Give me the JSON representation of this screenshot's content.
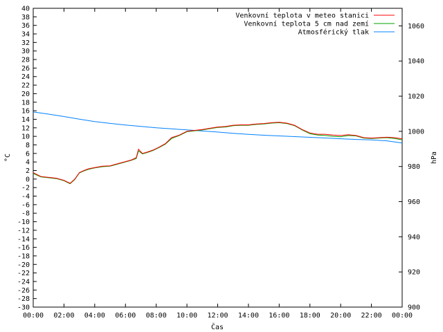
{
  "chart_data": {
    "type": "line",
    "xlabel": "Čas",
    "ylabel_left": "°C",
    "ylabel_right": "hPa",
    "x_ticks": [
      "00:00",
      "02:00",
      "04:00",
      "06:00",
      "08:00",
      "10:00",
      "12:00",
      "14:00",
      "16:00",
      "18:00",
      "20:00",
      "22:00",
      "00:00"
    ],
    "x_range_hours": [
      0,
      24
    ],
    "ylim_left": [
      -30,
      40
    ],
    "y_ticks_left": [
      40,
      38,
      36,
      34,
      32,
      30,
      28,
      26,
      24,
      22,
      20,
      18,
      16,
      14,
      12,
      10,
      8,
      6,
      4,
      2,
      0,
      -2,
      -4,
      -6,
      -8,
      -10,
      -12,
      -14,
      -16,
      -18,
      -20,
      -22,
      -24,
      -26,
      -28,
      -30
    ],
    "ylim_right": [
      900,
      1070
    ],
    "y_ticks_right": [
      1060,
      1040,
      1020,
      1000,
      980,
      960,
      940,
      920,
      900
    ],
    "grid": false,
    "legend_position": "top-right",
    "series": [
      {
        "name": "Venkovní teplota v meteo stanici",
        "color": "#ff0000",
        "axis": "left",
        "x": [
          0,
          0.5,
          1,
          1.5,
          2,
          2.4,
          2.7,
          3,
          3.3,
          3.6,
          4,
          4.5,
          5,
          5.5,
          6,
          6.4,
          6.7,
          6.85,
          7.1,
          7.4,
          7.8,
          8.2,
          8.6,
          9,
          9.5,
          10,
          10.5,
          11,
          11.5,
          12,
          12.5,
          13,
          13.5,
          14,
          14.5,
          15,
          15.5,
          16,
          16.5,
          17,
          17.5,
          18,
          18.5,
          19,
          19.5,
          20,
          20.5,
          21,
          21.5,
          22,
          22.5,
          23,
          23.5,
          24
        ],
        "values": [
          1.5,
          0.6,
          0.4,
          0.2,
          -0.3,
          -1,
          0,
          1.5,
          2,
          2.4,
          2.7,
          3,
          3.1,
          3.6,
          4.1,
          4.5,
          5,
          7,
          6,
          6.3,
          6.8,
          7.5,
          8.3,
          9.7,
          10.3,
          11.2,
          11.4,
          11.6,
          11.9,
          12.2,
          12.3,
          12.6,
          12.7,
          12.7,
          12.9,
          13,
          13.2,
          13.3,
          13.1,
          12.6,
          11.6,
          10.8,
          10.5,
          10.5,
          10.3,
          10.2,
          10.4,
          10.2,
          9.7,
          9.6,
          9.7,
          9.8,
          9.7,
          9.4
        ]
      },
      {
        "name": "Venkovní teplota 5 cm nad zemí",
        "color": "#00a000",
        "axis": "left",
        "x": [
          0,
          0.5,
          1,
          1.5,
          2,
          2.4,
          2.7,
          3,
          3.3,
          3.6,
          4,
          4.5,
          5,
          5.5,
          6,
          6.4,
          6.7,
          6.85,
          7.1,
          7.4,
          7.8,
          8.2,
          8.6,
          9,
          9.5,
          10,
          10.5,
          11,
          11.5,
          12,
          12.5,
          13,
          13.5,
          14,
          14.5,
          15,
          15.5,
          16,
          16.5,
          17,
          17.5,
          18,
          18.5,
          19,
          19.5,
          20,
          20.5,
          21,
          21.5,
          22,
          22.5,
          23,
          23.5,
          24
        ],
        "values": [
          1.3,
          0.5,
          0.3,
          0.1,
          -0.4,
          -1.1,
          -0.1,
          1.4,
          1.9,
          2.3,
          2.6,
          2.9,
          3,
          3.5,
          4,
          4.4,
          4.8,
          6.6,
          5.9,
          6.2,
          6.7,
          7.4,
          8.2,
          9.5,
          10.2,
          11.1,
          11.3,
          11.5,
          11.8,
          12.1,
          12.2,
          12.5,
          12.6,
          12.6,
          12.8,
          12.9,
          13.1,
          13.2,
          13,
          12.5,
          11.5,
          10.6,
          10.3,
          10.2,
          10,
          9.9,
          10.2,
          10.1,
          9.6,
          9.5,
          9.6,
          9.7,
          9.5,
          9.2
        ]
      },
      {
        "name": "Atmosférický tlak",
        "color": "#0080ff",
        "axis": "right",
        "x": [
          0,
          1,
          2,
          3,
          4,
          5,
          6,
          7,
          8,
          9,
          10,
          11,
          12,
          13,
          14,
          15,
          16,
          17,
          18,
          19,
          20,
          21,
          22,
          23,
          24
        ],
        "values": [
          1011,
          1009.8,
          1008.4,
          1006.9,
          1005.6,
          1004.5,
          1003.6,
          1002.8,
          1002,
          1001.4,
          1000.8,
          1000.2,
          999.6,
          998.9,
          998.3,
          997.8,
          997.4,
          997,
          996.6,
          996.2,
          995.8,
          995.4,
          995.1,
          994.6,
          993.4
        ]
      }
    ]
  }
}
